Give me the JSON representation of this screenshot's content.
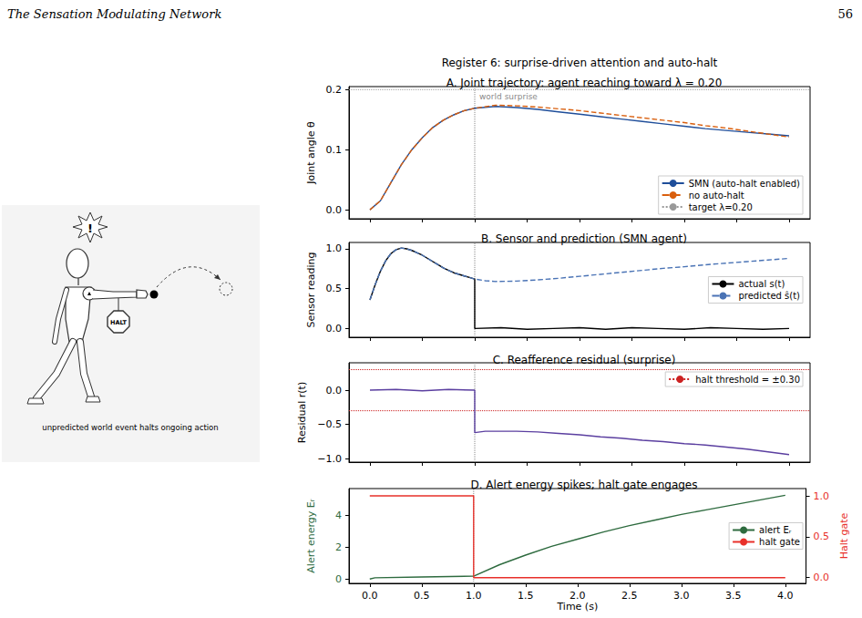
{
  "header": {
    "running_title": "The Sensation Modulating Network",
    "page_number": 56
  },
  "figure": {
    "title": "Register 6: surprise-driven attention and auto-halt",
    "illustration": {
      "alert": "!",
      "sign": "HALT",
      "caption": "unpredicted world event halts ongoing action"
    }
  },
  "chart_data": [
    {
      "type": "line",
      "title": "A. Joint trajectory: agent reaching toward λ = 0.20",
      "y_label": "Joint angle θ",
      "xlim": [
        -0.2,
        4.2
      ],
      "xticks": [
        {
          "value": 0,
          "label": "0.0"
        },
        0.5,
        {
          "value": 1,
          "label": "1.0"
        },
        1.5,
        {
          "value": 2,
          "label": "2.0"
        },
        2.5,
        {
          "value": 3,
          "label": "3.0"
        },
        3.5,
        {
          "value": 4,
          "label": "4.0"
        }
      ],
      "ylim": [
        -0.015,
        0.205
      ],
      "yticks": [
        {
          "value": 0,
          "label": "0.0"
        },
        0.1,
        0.2
      ],
      "grid": false,
      "tick_labels": "y",
      "legend": "lower right",
      "vlines": [
        1.0
      ],
      "annotations": [
        {
          "x": 1.0,
          "y": 0.2,
          "text": "world surprise"
        }
      ],
      "series": [
        {
          "name": "SMN (auto-halt enabled)",
          "color": "#1f4e9a",
          "line_style": "solid",
          "x": [
            0,
            0.1,
            0.2,
            0.3,
            0.4,
            0.5,
            0.6,
            0.7,
            0.8,
            0.9,
            1.0,
            1.2,
            1.4,
            1.6,
            1.8,
            2.0,
            2.2,
            2.4,
            2.6,
            2.8,
            3.0,
            3.2,
            3.4,
            3.6,
            3.8,
            4.0
          ],
          "values": [
            0,
            0.015,
            0.045,
            0.075,
            0.1,
            0.12,
            0.137,
            0.149,
            0.158,
            0.165,
            0.169,
            0.172,
            0.17,
            0.167,
            0.163,
            0.159,
            0.155,
            0.151,
            0.147,
            0.143,
            0.139,
            0.135,
            0.132,
            0.129,
            0.126,
            0.123
          ]
        },
        {
          "name": "no auto-halt",
          "color": "#d95f0e",
          "line_style": "dashed",
          "x": [
            0,
            0.1,
            0.2,
            0.3,
            0.4,
            0.5,
            0.6,
            0.7,
            0.8,
            0.9,
            1.0,
            1.2,
            1.4,
            1.6,
            1.8,
            2.0,
            2.2,
            2.4,
            2.6,
            2.8,
            3.0,
            3.2,
            3.4,
            3.6,
            3.8,
            4.0
          ],
          "values": [
            0,
            0.015,
            0.045,
            0.075,
            0.1,
            0.12,
            0.137,
            0.149,
            0.158,
            0.165,
            0.169,
            0.174,
            0.173,
            0.171,
            0.168,
            0.165,
            0.161,
            0.157,
            0.153,
            0.149,
            0.145,
            0.14,
            0.136,
            0.131,
            0.126,
            0.121
          ]
        },
        {
          "name": "target λ=0.20",
          "type": "hline",
          "color": "#999999",
          "line_style": "dotted",
          "values": [
            0.2
          ]
        }
      ]
    },
    {
      "type": "line",
      "title": "B. Sensor and prediction (SMN agent)",
      "y_label": "Sensor reading",
      "xlim": [
        -0.2,
        4.2
      ],
      "xticks": [
        {
          "value": 0,
          "label": "0.0"
        },
        0.5,
        {
          "value": 1,
          "label": "1.0"
        },
        1.5,
        {
          "value": 2,
          "label": "2.0"
        },
        2.5,
        {
          "value": 3,
          "label": "3.0"
        },
        3.5,
        {
          "value": 4,
          "label": "4.0"
        }
      ],
      "ylim": [
        -0.11,
        1.08
      ],
      "yticks": [
        {
          "value": 0,
          "label": "0.0"
        },
        0.5,
        {
          "value": 1,
          "label": "1.0"
        }
      ],
      "grid": false,
      "tick_labels": "y",
      "legend": "center right",
      "vlines": [
        1.0
      ],
      "series": [
        {
          "name": "actual s(t)",
          "color": "#000000",
          "line_style": "solid",
          "x": [
            0,
            0.05,
            0.1,
            0.15,
            0.2,
            0.25,
            0.3,
            0.35,
            0.4,
            0.45,
            0.5,
            0.55,
            0.6,
            0.65,
            0.7,
            0.75,
            0.8,
            0.85,
            0.9,
            0.95,
            1.0,
            1.0,
            1.25,
            1.5,
            1.75,
            2.0,
            2.25,
            2.5,
            2.75,
            3.0,
            3.25,
            3.5,
            3.75,
            4.0
          ],
          "values": [
            0.36,
            0.55,
            0.72,
            0.85,
            0.94,
            0.99,
            1.01,
            1.0,
            0.98,
            0.95,
            0.92,
            0.88,
            0.84,
            0.8,
            0.76,
            0.73,
            0.7,
            0.68,
            0.66,
            0.64,
            0.62,
            0.0,
            0.01,
            -0.01,
            0.0,
            0.01,
            -0.01,
            0.01,
            0.0,
            -0.01,
            0.01,
            0.0,
            -0.01,
            0.0
          ]
        },
        {
          "name": "predicted ŝ(t)",
          "color": "#4a73b5",
          "line_style": "dashed",
          "x": [
            0,
            0.05,
            0.1,
            0.15,
            0.2,
            0.25,
            0.3,
            0.35,
            0.4,
            0.45,
            0.5,
            0.55,
            0.6,
            0.65,
            0.7,
            0.75,
            0.8,
            0.85,
            0.9,
            0.95,
            1.0,
            1.1,
            1.2,
            1.4,
            1.6,
            1.8,
            2.0,
            2.2,
            2.4,
            2.6,
            2.8,
            3.0,
            3.2,
            3.4,
            3.6,
            3.8,
            4.0
          ],
          "values": [
            0.36,
            0.55,
            0.72,
            0.85,
            0.94,
            0.99,
            1.01,
            1.0,
            0.98,
            0.95,
            0.92,
            0.88,
            0.84,
            0.8,
            0.76,
            0.73,
            0.7,
            0.68,
            0.66,
            0.64,
            0.62,
            0.6,
            0.59,
            0.595,
            0.61,
            0.63,
            0.655,
            0.68,
            0.705,
            0.73,
            0.755,
            0.775,
            0.8,
            0.82,
            0.84,
            0.86,
            0.88
          ]
        }
      ]
    },
    {
      "type": "line",
      "title": "C. Reafference residual (surprise)",
      "y_label": "Residual r(t)",
      "xlim": [
        -0.2,
        4.2
      ],
      "xticks": [
        {
          "value": 0,
          "label": "0.0"
        },
        0.5,
        {
          "value": 1,
          "label": "1.0"
        },
        1.5,
        {
          "value": 2,
          "label": "2.0"
        },
        2.5,
        {
          "value": 3,
          "label": "3.0"
        },
        3.5,
        {
          "value": 4,
          "label": "4.0"
        }
      ],
      "ylim": [
        -1.05,
        0.4
      ],
      "yticks": [
        {
          "value": -1,
          "label": "−1.0"
        },
        {
          "value": -0.5,
          "label": "−0.5"
        },
        {
          "value": 0,
          "label": "0.0"
        }
      ],
      "grid": false,
      "tick_labels": "y",
      "legend": "upper right",
      "vlines": [
        1.0
      ],
      "series": [
        {
          "color": "#5b3fa0",
          "line_style": "solid",
          "x": [
            0,
            0.25,
            0.5,
            0.75,
            1.0,
            1.0,
            1.1,
            1.2,
            1.4,
            1.6,
            1.8,
            2.0,
            2.2,
            2.4,
            2.6,
            2.8,
            3.0,
            3.2,
            3.4,
            3.6,
            3.8,
            4.0
          ],
          "values": [
            0,
            0.01,
            -0.01,
            0.01,
            0,
            -0.62,
            -0.6,
            -0.6,
            -0.6,
            -0.61,
            -0.63,
            -0.65,
            -0.68,
            -0.7,
            -0.73,
            -0.75,
            -0.78,
            -0.8,
            -0.83,
            -0.86,
            -0.9,
            -0.94
          ]
        },
        {
          "name": "halt threshold = ±0.30",
          "type": "hline",
          "color": "#cc2222",
          "line_style": "dotted",
          "values": [
            0.3,
            -0.3
          ]
        }
      ]
    },
    {
      "type": "line",
      "title": "D. Alert energy spikes; halt gate engages",
      "x_label": "Time (s)",
      "y_label": "Alert energy Eᵣ",
      "y2_label": "Halt gate",
      "xlim": [
        -0.2,
        4.2
      ],
      "xticks": [
        {
          "value": 0,
          "label": "0.0"
        },
        0.5,
        {
          "value": 1,
          "label": "1.0"
        },
        1.5,
        {
          "value": 2,
          "label": "2.0"
        },
        2.5,
        {
          "value": 3,
          "label": "3.0"
        },
        3.5,
        {
          "value": 4,
          "label": "4.0"
        }
      ],
      "ylim": [
        -0.27,
        5.67
      ],
      "yticks": [
        0,
        2,
        4
      ],
      "y2lim": [
        -0.07,
        1.09
      ],
      "y2ticks": [
        {
          "value": 0,
          "label": "0.0"
        },
        0.5,
        {
          "value": 1,
          "label": "1.0"
        }
      ],
      "grid": false,
      "legend": "center right",
      "vlines": [
        1.0
      ],
      "series": [
        {
          "name": "alert Eᵣ",
          "color": "#2e6b3f",
          "line_style": "solid",
          "x": [
            0,
            0.05,
            0.5,
            1.0,
            1.25,
            1.5,
            1.75,
            2.0,
            2.25,
            2.5,
            2.75,
            3.0,
            3.25,
            3.5,
            3.75,
            4.0
          ],
          "values": [
            0.0,
            0.08,
            0.13,
            0.18,
            0.9,
            1.5,
            2.05,
            2.5,
            2.95,
            3.35,
            3.7,
            4.05,
            4.35,
            4.65,
            4.95,
            5.25
          ]
        },
        {
          "name": "halt gate",
          "axis": "y2",
          "color": "#e8302a",
          "line_style": "solid",
          "x": [
            0,
            1.0,
            1.0,
            4.0
          ],
          "values": [
            1,
            1,
            0,
            0
          ]
        }
      ]
    }
  ]
}
